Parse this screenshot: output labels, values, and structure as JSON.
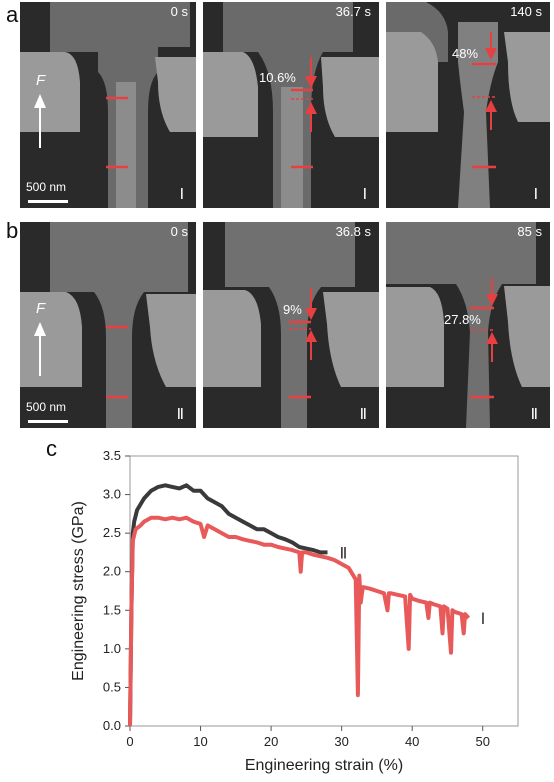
{
  "panel_labels": {
    "a": "a",
    "b": "b",
    "c": "c"
  },
  "row_a": {
    "frames": [
      {
        "time": "0 s",
        "roman": "Ⅰ",
        "percent": ""
      },
      {
        "time": "36.7 s",
        "roman": "Ⅰ",
        "percent": "10.6%"
      },
      {
        "time": "140 s",
        "roman": "Ⅰ",
        "percent": "48%"
      }
    ],
    "scale_bar": "500 nm",
    "force_label": "F"
  },
  "row_b": {
    "frames": [
      {
        "time": "0 s",
        "roman": "Ⅱ",
        "percent": ""
      },
      {
        "time": "36.8 s",
        "roman": "Ⅱ",
        "percent": "9%"
      },
      {
        "time": "85 s",
        "roman": "Ⅱ",
        "percent": "27.8%"
      }
    ],
    "scale_bar": "500 nm",
    "force_label": "F"
  },
  "chart_data": {
    "type": "line",
    "xlabel": "Engineering strain (%)",
    "ylabel": "Engineering stress (GPa)",
    "xlim": [
      0,
      55
    ],
    "ylim": [
      0,
      3.5
    ],
    "xticks": [
      0,
      10,
      20,
      30,
      40,
      50
    ],
    "yticks": [
      0.0,
      0.5,
      1.0,
      1.5,
      2.0,
      2.5,
      3.0,
      3.5
    ],
    "grid": false,
    "series": [
      {
        "name": "Ⅱ",
        "color": "#3a3a3a",
        "x": [
          0,
          0.2,
          0.4,
          0.6,
          1,
          2,
          3,
          4,
          5,
          6,
          7,
          8,
          9,
          10,
          11,
          12,
          13,
          14,
          15,
          16,
          17,
          18,
          19,
          20,
          21,
          22,
          23,
          24,
          25,
          26,
          27,
          28
        ],
        "y": [
          0,
          1.5,
          2.5,
          2.65,
          2.8,
          2.95,
          3.05,
          3.1,
          3.12,
          3.1,
          3.08,
          3.12,
          3.05,
          3.05,
          2.95,
          2.9,
          2.85,
          2.75,
          2.7,
          2.65,
          2.6,
          2.55,
          2.55,
          2.5,
          2.45,
          2.42,
          2.38,
          2.32,
          2.3,
          2.28,
          2.25,
          2.25
        ]
      },
      {
        "name": "Ⅰ",
        "color": "#e85a5a",
        "x": [
          0,
          0.2,
          0.4,
          0.8,
          1.5,
          2,
          3,
          4,
          5,
          6,
          7,
          8,
          9,
          10,
          10.5,
          11,
          12,
          13,
          14,
          15,
          16,
          17,
          18,
          19,
          20,
          21,
          22,
          23,
          24,
          24.2,
          24.4,
          25,
          26,
          27,
          28,
          29,
          30,
          31,
          32,
          32.3,
          32.5,
          32.7,
          33,
          34,
          35,
          36,
          36.5,
          36.7,
          37,
          38,
          39,
          39.5,
          39.7,
          40,
          41,
          42,
          42.3,
          42.5,
          43,
          44,
          44.3,
          44.5,
          45,
          45.5,
          45.7,
          46,
          47,
          47.3,
          47.5,
          47.8,
          48
        ],
        "y": [
          0,
          1.5,
          2.4,
          2.55,
          2.6,
          2.65,
          2.7,
          2.7,
          2.68,
          2.7,
          2.68,
          2.7,
          2.65,
          2.62,
          2.45,
          2.6,
          2.55,
          2.5,
          2.45,
          2.45,
          2.42,
          2.4,
          2.38,
          2.35,
          2.35,
          2.32,
          2.3,
          2.28,
          2.25,
          2.0,
          2.25,
          2.25,
          2.22,
          2.2,
          2.18,
          2.15,
          2.1,
          2.05,
          1.9,
          0.4,
          1.95,
          1.6,
          1.8,
          1.78,
          1.75,
          1.72,
          1.5,
          1.72,
          1.72,
          1.7,
          1.68,
          1.0,
          1.7,
          1.65,
          1.62,
          1.6,
          1.4,
          1.6,
          1.58,
          1.55,
          1.2,
          1.55,
          1.52,
          0.95,
          1.5,
          1.48,
          1.45,
          1.2,
          1.45,
          1.42,
          1.4
        ]
      }
    ]
  }
}
